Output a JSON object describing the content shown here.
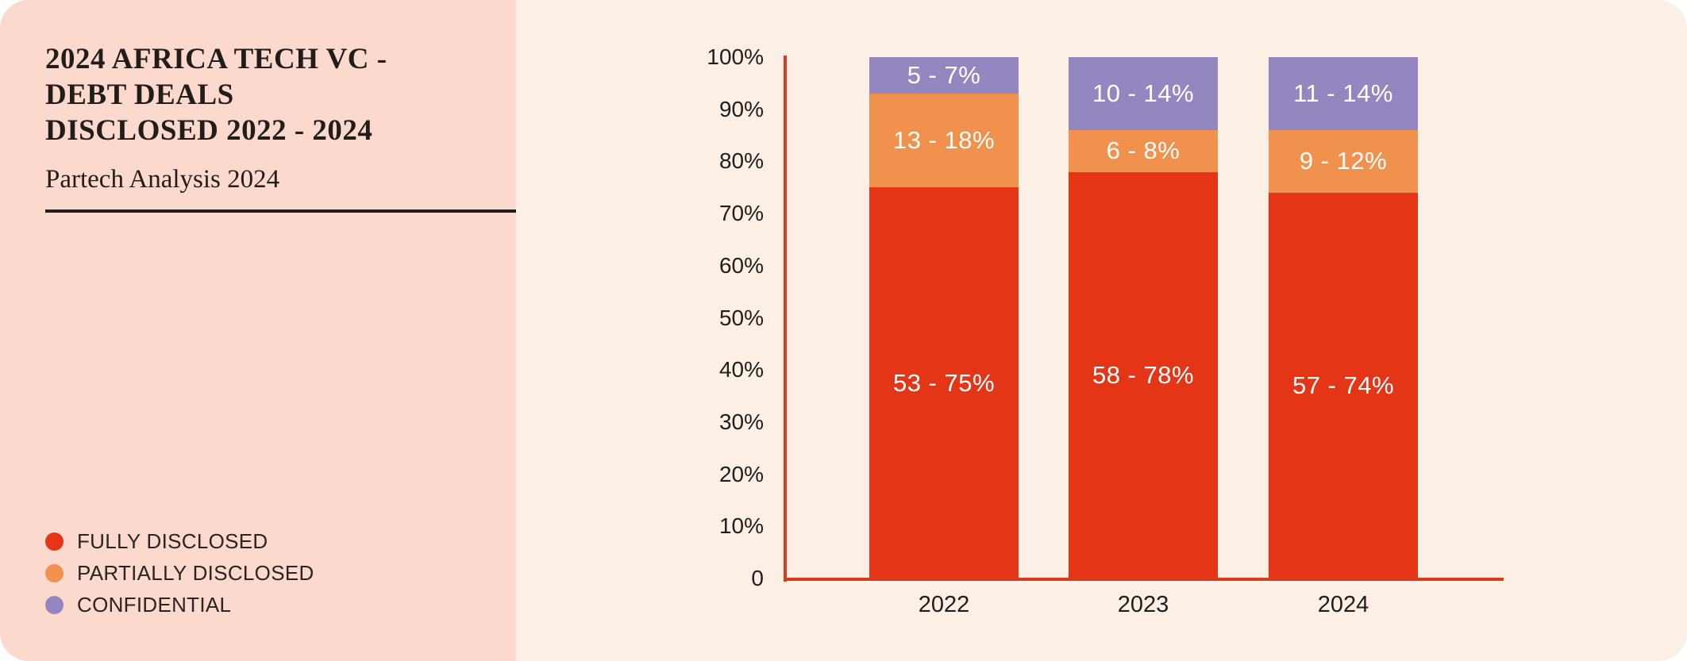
{
  "panel": {
    "title_line1": "2024 AFRICA TECH VC -",
    "title_line2": "DEBT DEALS",
    "title_line3": "DISCLOSED 2022 - 2024",
    "subtitle": "Partech Analysis 2024"
  },
  "legend": [
    {
      "label": "FULLY DISCLOSED",
      "color": "#e43517"
    },
    {
      "label": "PARTIALLY DISCLOSED",
      "color": "#f0914e"
    },
    {
      "label": "CONFIDENTIAL",
      "color": "#9487c0"
    }
  ],
  "colors": {
    "left_panel_bg": "#fbd9cd",
    "chart_bg": "#fcf0e6",
    "axis": "#d63d1c",
    "text_dark": "#211d1a",
    "bar_label_text": "#ffffff"
  },
  "chart_data": {
    "type": "bar",
    "stacked": true,
    "title": "2024 AFRICA TECH VC - DEBT DEALS DISCLOSED 2022 - 2024",
    "subtitle": "Partech Analysis 2024",
    "categories": [
      "2022",
      "2023",
      "2024"
    ],
    "series": [
      {
        "name": "FULLY DISCLOSED",
        "color": "#e43517",
        "counts": [
          53,
          58,
          57
        ],
        "percents": [
          75,
          78,
          74
        ],
        "labels": [
          "53 - 75%",
          "58 - 78%",
          "57 - 74%"
        ]
      },
      {
        "name": "PARTIALLY DISCLOSED",
        "color": "#f0914e",
        "counts": [
          13,
          6,
          9
        ],
        "percents": [
          18,
          8,
          12
        ],
        "labels": [
          "13 - 18%",
          "6 - 8%",
          "9 - 12%"
        ]
      },
      {
        "name": "CONFIDENTIAL",
        "color": "#9487c0",
        "counts": [
          5,
          10,
          11
        ],
        "percents": [
          7,
          14,
          14
        ],
        "labels": [
          "5 - 7%",
          "10 - 14%",
          "11 - 14%"
        ]
      }
    ],
    "y_axis": {
      "min": 0,
      "max": 100,
      "ticks": [
        "0",
        "10%",
        "20%",
        "30%",
        "40%",
        "50%",
        "60%",
        "70%",
        "80%",
        "90%",
        "100%"
      ]
    },
    "legend_position": "bottom-left",
    "grid": false
  }
}
